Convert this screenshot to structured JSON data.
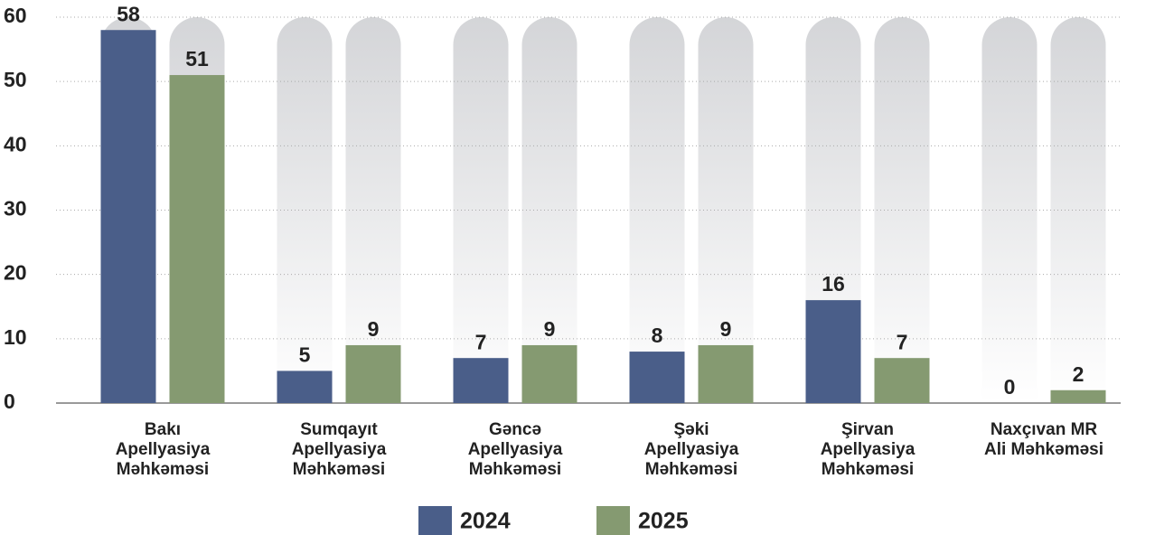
{
  "chart_data": {
    "type": "bar",
    "categories": [
      "Bakı\nApellyasiya\nMəhkəməsi",
      "Sumqayıt\nApellyasiya\nMəhkəməsi",
      "Gəncə\nApellyasiya\nMəhkəməsi",
      "Şəki\nApellyasiya\nMəhkəməsi",
      "Şirvan\nApellyasiya\nMəhkəməsi",
      "Naxçıvan MR\nAli Məhkəməsi"
    ],
    "series": [
      {
        "name": "2024",
        "color": "#4a5e89",
        "values": [
          58,
          5,
          7,
          8,
          16,
          0
        ]
      },
      {
        "name": "2025",
        "color": "#859a71",
        "values": [
          51,
          9,
          9,
          9,
          7,
          2
        ]
      }
    ],
    "ylim": [
      0,
      60
    ],
    "yticks": [
      0,
      10,
      20,
      30,
      40,
      50,
      60
    ],
    "grid": true,
    "legend": "bottom"
  }
}
